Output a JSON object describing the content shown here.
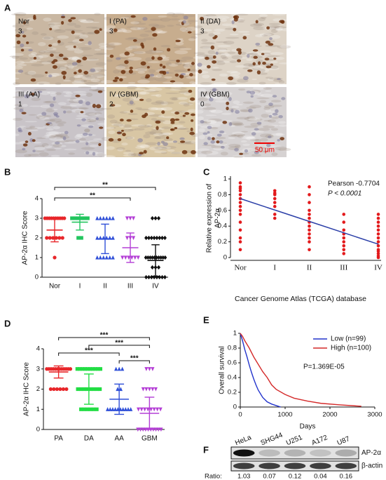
{
  "panel_labels": [
    "A",
    "B",
    "C",
    "D",
    "E",
    "F"
  ],
  "micrographs": [
    {
      "label": "Nor",
      "score": 3
    },
    {
      "label": "I (PA)",
      "score": 3
    },
    {
      "label": "II (DA)",
      "score": 3
    },
    {
      "label": "III (AA)",
      "score": 1
    },
    {
      "label": "IV (GBM)",
      "score": 2
    },
    {
      "label": "IV (GBM)",
      "score": 0
    }
  ],
  "scale_bar": "50 μm",
  "chart_data": [
    {
      "type": "dot",
      "ylabel": "AP-2α IHC Score",
      "categories": [
        "Nor",
        "I",
        "II",
        "III",
        "IV"
      ],
      "groups": [
        {
          "color": "#e8262a",
          "marker": "circle",
          "points": [
            3,
            3,
            3,
            3,
            3,
            3,
            3,
            3,
            3,
            3,
            2,
            2,
            2,
            2,
            2,
            2,
            1
          ],
          "mean": 2.4,
          "sd": 0.6
        },
        {
          "color": "#22c55e",
          "marker": "square",
          "points": [
            3,
            3,
            3,
            3,
            3,
            3,
            2,
            2
          ],
          "mean": 2.8,
          "sd": 0.4
        },
        {
          "color": "#2f4fd8",
          "marker": "triangle",
          "points": [
            3,
            3,
            3,
            3,
            3,
            3,
            2,
            2,
            2,
            2,
            2,
            2,
            1,
            1,
            1,
            1,
            1,
            1
          ],
          "mean": 1.95,
          "sd": 0.75
        },
        {
          "color": "#b43fd6",
          "marker": "triangle-down",
          "points": [
            3,
            3,
            3,
            2,
            2,
            2,
            1,
            1,
            1,
            1,
            1,
            1
          ],
          "mean": 1.5,
          "sd": 0.75
        },
        {
          "color": "#111111",
          "marker": "diamond",
          "points": [
            3,
            3,
            3,
            2,
            2,
            2,
            2,
            2,
            2,
            2,
            2,
            1,
            1,
            1,
            1,
            1,
            1,
            1,
            1,
            1,
            1,
            0.5,
            0.5,
            0.5,
            0,
            0,
            0,
            0,
            0,
            0,
            0,
            0
          ],
          "mean": 0.85,
          "sd": 0.8
        }
      ],
      "ylim": [
        0,
        4
      ],
      "yticks": [
        0,
        1,
        2,
        3,
        4
      ],
      "brackets": [
        {
          "from": "Nor",
          "to": "IV",
          "label": "**"
        },
        {
          "from": "Nor",
          "to": "III",
          "label": "**"
        }
      ]
    },
    {
      "type": "scatter",
      "ylabel": [
        "Relative expression of",
        "AP-2α"
      ],
      "categories": [
        "Nor",
        "I",
        "II",
        "III",
        "IV"
      ],
      "points": [
        [
          0.95,
          0.9,
          0.88,
          0.85,
          0.8,
          0.75,
          0.7,
          0.65,
          0.6,
          0.55,
          0.45,
          0.35,
          0.25,
          0.2,
          0.1
        ],
        [
          0.85,
          0.82,
          0.8,
          0.75,
          0.7,
          0.65,
          0.55,
          0.5
        ],
        [
          0.9,
          0.8,
          0.7,
          0.6,
          0.55,
          0.5,
          0.45,
          0.4,
          0.35,
          0.3,
          0.25,
          0.2,
          0.1
        ],
        [
          0.55,
          0.45,
          0.35,
          0.3,
          0.25,
          0.2,
          0.15,
          0.1,
          0.05
        ],
        [
          0.55,
          0.5,
          0.45,
          0.4,
          0.35,
          0.3,
          0.25,
          0.2,
          0.15,
          0.1,
          0.08,
          0.05,
          0.02,
          0
        ]
      ],
      "point_color": "#e31a1c",
      "fit": [
        0.75,
        0.605,
        0.46,
        0.315,
        0.17
      ],
      "fit_color": "#2b3fa8",
      "annotations": [
        "Pearson -0.7704",
        "P < 0.0001"
      ],
      "ylim": [
        0,
        1
      ],
      "yticks": [
        0,
        0.2,
        0.4,
        0.6,
        0.8,
        1
      ]
    },
    {
      "type": "dot",
      "ylabel": "AP-2α IHC Score",
      "categories": [
        "PA",
        "DA",
        "AA",
        "GBM"
      ],
      "groups": [
        {
          "color": "#e8262a",
          "marker": "circle",
          "points": [
            3,
            3,
            3,
            3,
            3,
            3,
            3,
            3,
            3,
            3,
            3,
            3,
            2,
            2,
            2,
            2,
            2,
            2
          ],
          "mean": 2.85,
          "sd": 0.3
        },
        {
          "color": "#22dd44",
          "marker": "square",
          "points": [
            3,
            3,
            3,
            3,
            3,
            3,
            3,
            3,
            3,
            3,
            2,
            2,
            2,
            2,
            2,
            2,
            2,
            2,
            1,
            1,
            1,
            1,
            1,
            1
          ],
          "mean": 2.0,
          "sd": 0.75
        },
        {
          "color": "#2f4fd8",
          "marker": "triangle",
          "points": [
            3,
            3,
            3,
            2,
            2,
            1,
            1,
            1,
            1,
            1,
            1,
            1,
            1,
            1,
            1
          ],
          "mean": 1.5,
          "sd": 0.75
        },
        {
          "color": "#b43fd6",
          "marker": "triangle-down",
          "points": [
            3,
            3,
            3,
            2,
            2,
            2,
            2,
            2,
            1,
            1,
            1,
            1,
            1,
            1,
            1,
            1,
            0,
            0,
            0,
            0,
            0,
            0,
            0,
            0,
            0,
            0
          ],
          "mean": 0.8,
          "sd": 0.8
        }
      ],
      "ylim": [
        0,
        4
      ],
      "yticks": [
        0,
        1,
        2,
        3,
        4
      ],
      "brackets": [
        {
          "from": "PA",
          "to": "GBM",
          "label": "***"
        },
        {
          "from": "DA",
          "to": "GBM",
          "label": "***"
        },
        {
          "from": "PA",
          "to": "AA",
          "label": "***"
        },
        {
          "from": "AA",
          "to": "GBM",
          "label": "***"
        }
      ]
    },
    {
      "type": "survival",
      "title": "Cancer Genome Atlas (TCGA) database",
      "xlabel": "Days",
      "ylabel": "Overall survival",
      "series": [
        {
          "name": "Low (n=99)",
          "color": "#2233cc",
          "x": [
            0,
            50,
            100,
            150,
            200,
            250,
            300,
            350,
            400,
            500,
            600,
            700,
            800,
            900
          ],
          "values": [
            1,
            0.9,
            0.78,
            0.68,
            0.57,
            0.47,
            0.38,
            0.3,
            0.23,
            0.13,
            0.07,
            0.04,
            0.02,
            0
          ]
        },
        {
          "name": "High (n=100)",
          "color": "#d42a2a",
          "x": [
            0,
            50,
            100,
            200,
            300,
            400,
            500,
            600,
            700,
            800,
            1000,
            1200,
            1500,
            1800,
            2200,
            2700
          ],
          "values": [
            1,
            0.96,
            0.9,
            0.8,
            0.68,
            0.58,
            0.48,
            0.4,
            0.3,
            0.24,
            0.17,
            0.12,
            0.08,
            0.05,
            0.03,
            0.01
          ]
        }
      ],
      "annotation": "P=1.369E-05",
      "legend": "top-right",
      "xlim": [
        0,
        3000
      ],
      "xticks": [
        0,
        1000,
        2000,
        3000
      ],
      "ylim": [
        0,
        1
      ],
      "yticks": [
        0,
        0.2,
        0.4,
        0.6,
        0.8,
        1
      ]
    }
  ],
  "blot": {
    "lanes": [
      "HeLa",
      "SHG44",
      "U251",
      "A172",
      "U87"
    ],
    "bands": [
      "AP-2α",
      "β-actin"
    ],
    "ratio_label": "Ratio:",
    "ratios": [
      1.03,
      0.07,
      0.12,
      0.04,
      0.16
    ]
  }
}
